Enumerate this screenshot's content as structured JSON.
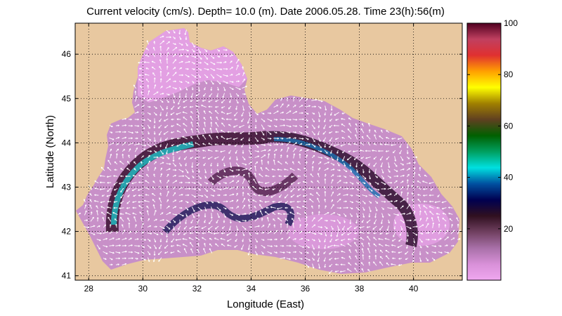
{
  "title": "Current velocity (cm/s). Depth= 10.0 (m). Date 2006.05.28. Time 23(h):56(m)",
  "map": {
    "xlabel": "Longitude (East)",
    "ylabel": "Latitude (North)",
    "xlim": [
      27.5,
      41.8
    ],
    "ylim": [
      40.9,
      46.7
    ],
    "xticks": [
      "28",
      "30",
      "32",
      "34",
      "36",
      "38",
      "40"
    ],
    "xtick_values": [
      28,
      30,
      32,
      34,
      36,
      38,
      40
    ],
    "yticks": [
      "41",
      "42",
      "43",
      "44",
      "45",
      "46"
    ],
    "ytick_values": [
      41,
      42,
      43,
      44,
      45,
      46
    ],
    "grid": "dotted",
    "land_color": "#e8c8a0",
    "region": "Black Sea",
    "arrows": "white current vectors"
  },
  "colorbar": {
    "ticks": [
      "20",
      "40",
      "60",
      "80",
      "100"
    ],
    "tick_values": [
      20,
      40,
      60,
      80,
      100
    ],
    "range": [
      0,
      100
    ],
    "colors": [
      "#f0a8f0",
      "#d890d8",
      "#a870a8",
      "#704060",
      "#301020",
      "#000050",
      "#0050a0",
      "#00e0e0",
      "#00a060",
      "#006000",
      "#604020",
      "#a08000",
      "#ffff00",
      "#ffa000",
      "#e03030",
      "#c04060",
      "#500020"
    ]
  }
}
